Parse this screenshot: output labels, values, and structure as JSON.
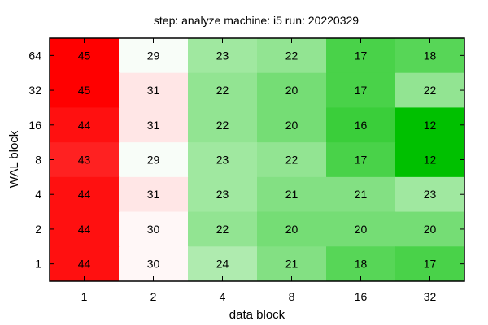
{
  "chart_data": {
    "type": "heatmap",
    "title": "step: analyze  machine: i5  run: 20220329",
    "xlabel": "data block",
    "ylabel": "WAL block",
    "x_categories": [
      "1",
      "2",
      "4",
      "8",
      "16",
      "32"
    ],
    "y_categories": [
      "64",
      "32",
      "16",
      "8",
      "4",
      "2",
      "1"
    ],
    "values": [
      [
        45,
        29,
        23,
        22,
        17,
        18
      ],
      [
        45,
        31,
        22,
        20,
        17,
        22
      ],
      [
        44,
        31,
        22,
        20,
        16,
        12
      ],
      [
        43,
        29,
        23,
        22,
        17,
        12
      ],
      [
        44,
        31,
        23,
        21,
        21,
        23
      ],
      [
        44,
        30,
        22,
        20,
        20,
        20
      ],
      [
        44,
        30,
        24,
        21,
        18,
        17
      ]
    ],
    "grid": false,
    "legend": "none"
  }
}
